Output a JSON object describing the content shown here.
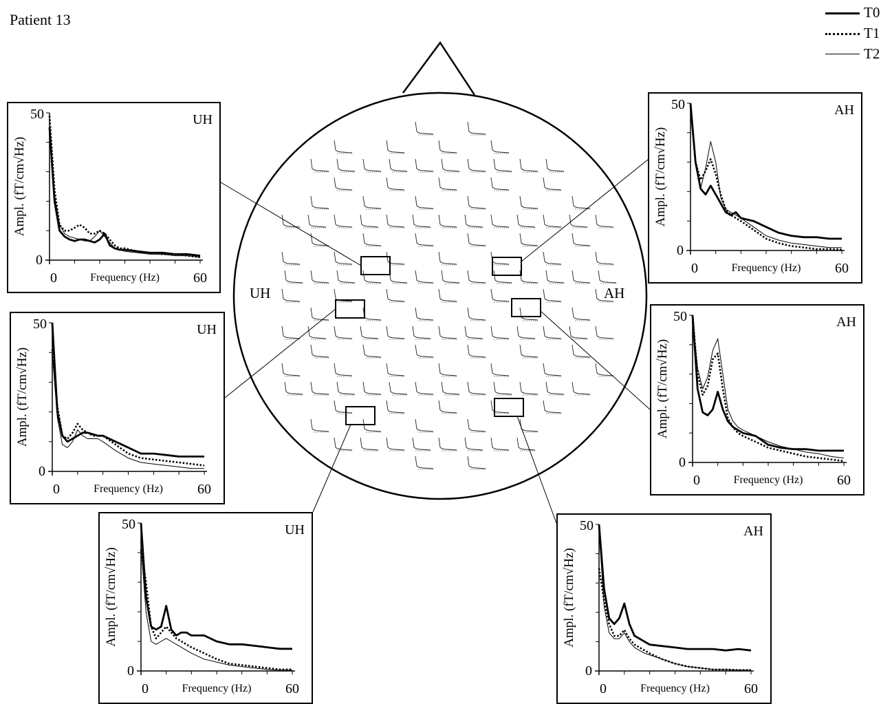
{
  "figure": {
    "title": "Patient 13",
    "hemisphere_labels": {
      "left": "UH",
      "right": "AH"
    }
  },
  "legend": [
    {
      "name": "T0",
      "style": "thick-solid"
    },
    {
      "name": "T1",
      "style": "dotted"
    },
    {
      "name": "T2",
      "style": "thin-solid"
    }
  ],
  "chart_data": [
    {
      "type": "line",
      "panel": "upper-left",
      "label": "UH",
      "xlabel": "Frequency (Hz)",
      "ylabel": "Ampl. (fT/cm√Hz)",
      "xlim": [
        0,
        60
      ],
      "ylim": [
        0,
        50
      ],
      "xticks": [
        "0",
        "60"
      ],
      "yticks": [
        "0",
        "50"
      ],
      "x": [
        0,
        2,
        4,
        6,
        8,
        10,
        12,
        14,
        16,
        18,
        20,
        22,
        24,
        26,
        28,
        30,
        35,
        40,
        45,
        50,
        55,
        60
      ],
      "series": [
        {
          "name": "T0",
          "values": [
            45,
            20,
            10,
            8,
            7,
            6.5,
            7,
            7,
            6.5,
            6,
            7,
            9,
            5,
            4,
            3.5,
            3.5,
            3,
            2.5,
            2.5,
            2,
            2,
            1.5
          ]
        },
        {
          "name": "T1",
          "values": [
            49,
            24,
            12,
            10,
            10,
            11,
            12,
            11,
            9,
            9,
            10,
            9,
            7,
            5,
            4,
            4,
            3,
            2.5,
            2,
            2,
            1.5,
            1
          ]
        },
        {
          "name": "T2",
          "values": [
            44,
            22,
            12,
            9,
            8,
            7.5,
            7,
            6.5,
            6.5,
            8,
            10,
            8,
            6,
            4,
            3.5,
            3,
            2.5,
            2,
            2,
            1.5,
            1.5,
            1
          ]
        }
      ]
    },
    {
      "type": "line",
      "panel": "middle-left",
      "label": "UH",
      "xlabel": "Frequency (Hz)",
      "ylabel": "Ampl. (fT/cm√Hz)",
      "xlim": [
        0,
        60
      ],
      "ylim": [
        0,
        50
      ],
      "xticks": [
        "0",
        "60"
      ],
      "yticks": [
        "0",
        "50"
      ],
      "x": [
        0,
        2,
        4,
        6,
        8,
        10,
        12,
        14,
        16,
        18,
        20,
        25,
        30,
        35,
        40,
        45,
        50,
        55,
        60
      ],
      "series": [
        {
          "name": "T0",
          "values": [
            50,
            20,
            12,
            10,
            11,
            12,
            13,
            13,
            12.5,
            12,
            12,
            10,
            8,
            6,
            6,
            5.5,
            5,
            5,
            5
          ]
        },
        {
          "name": "T1",
          "values": [
            41,
            22,
            12,
            11,
            13,
            16,
            14,
            13,
            12,
            12,
            12,
            9,
            6,
            4.5,
            4,
            3.5,
            3,
            2.5,
            2
          ]
        },
        {
          "name": "T2",
          "values": [
            40,
            18,
            9,
            8,
            10,
            14,
            12,
            11,
            11,
            11,
            10,
            7,
            4.5,
            3,
            2.5,
            2,
            1.5,
            1,
            1
          ]
        }
      ]
    },
    {
      "type": "line",
      "panel": "bottom-left",
      "label": "UH",
      "xlabel": "Frequency (Hz)",
      "ylabel": "Ampl. (fT/cm√Hz)",
      "xlim": [
        0,
        60
      ],
      "ylim": [
        0,
        50
      ],
      "xticks": [
        "0",
        "60"
      ],
      "yticks": [
        "0",
        "50"
      ],
      "x": [
        0,
        2,
        4,
        6,
        8,
        10,
        12,
        14,
        16,
        18,
        20,
        25,
        30,
        35,
        40,
        45,
        50,
        55,
        60
      ],
      "series": [
        {
          "name": "T0",
          "values": [
            50,
            25,
            15,
            14,
            15,
            22,
            14,
            12,
            13,
            13,
            12,
            12,
            10,
            9,
            9,
            8.5,
            8,
            7.5,
            7.5
          ]
        },
        {
          "name": "T1",
          "values": [
            41,
            30,
            15,
            11,
            13,
            15,
            13,
            11,
            10,
            9,
            8,
            6,
            4,
            2.5,
            2,
            1.5,
            1,
            0.5,
            0.5
          ]
        },
        {
          "name": "T2",
          "values": [
            42,
            20,
            10,
            9,
            10,
            11,
            10,
            9,
            8,
            7,
            6,
            4,
            3,
            2,
            1.5,
            1,
            0.5,
            0.3,
            0.3
          ]
        }
      ]
    },
    {
      "type": "line",
      "panel": "upper-right",
      "label": "AH",
      "xlabel": "Frequency (Hz)",
      "ylabel": "Ampl. (fT/cm√Hz)",
      "xlim": [
        0,
        60
      ],
      "ylim": [
        0,
        50
      ],
      "xticks": [
        "0",
        "60"
      ],
      "yticks": [
        "0",
        "50"
      ],
      "x": [
        0,
        2,
        4,
        6,
        8,
        10,
        12,
        14,
        16,
        18,
        20,
        25,
        30,
        35,
        40,
        45,
        50,
        55,
        60
      ],
      "series": [
        {
          "name": "T0",
          "values": [
            50,
            30,
            21,
            19,
            22,
            19,
            16,
            13,
            12,
            13,
            11,
            10,
            8,
            6,
            5,
            4.5,
            4.5,
            4,
            4
          ]
        },
        {
          "name": "T1",
          "values": [
            49,
            30,
            24,
            27,
            31,
            26,
            19,
            14,
            12,
            11,
            10,
            7,
            4,
            2.5,
            1.5,
            1,
            0.5,
            0.5,
            0.3
          ]
        },
        {
          "name": "T2",
          "values": [
            48,
            30,
            21,
            28,
            37,
            30,
            18,
            14,
            13,
            12,
            11,
            8,
            5,
            3.5,
            2.5,
            2,
            1.5,
            1,
            1
          ]
        }
      ]
    },
    {
      "type": "line",
      "panel": "middle-right",
      "label": "AH",
      "xlabel": "Frequency (Hz)",
      "ylabel": "Ampl. (fT/cm√Hz)",
      "xlim": [
        0,
        60
      ],
      "ylim": [
        0,
        50
      ],
      "xticks": [
        "0",
        "60"
      ],
      "yticks": [
        "0",
        "50"
      ],
      "x": [
        0,
        2,
        4,
        6,
        8,
        10,
        12,
        14,
        16,
        18,
        20,
        25,
        30,
        35,
        40,
        45,
        50,
        55,
        60
      ],
      "series": [
        {
          "name": "T0",
          "values": [
            50,
            25,
            17,
            16,
            18,
            24,
            18,
            14,
            12,
            11,
            10,
            9,
            6,
            5,
            4.5,
            4.5,
            4,
            4,
            4
          ]
        },
        {
          "name": "T1",
          "values": [
            50,
            30,
            23,
            26,
            35,
            37,
            25,
            15,
            12,
            10,
            9,
            7,
            5,
            4,
            3,
            2,
            1.5,
            1,
            0.5
          ]
        },
        {
          "name": "T2",
          "values": [
            49,
            32,
            25,
            29,
            38,
            42,
            30,
            18,
            14,
            12,
            11,
            9,
            7,
            5.5,
            4.5,
            3.5,
            3,
            2,
            1.5
          ]
        }
      ]
    },
    {
      "type": "line",
      "panel": "bottom-right",
      "label": "AH",
      "xlabel": "Frequency (Hz)",
      "ylabel": "Ampl. (fT/cm√Hz)",
      "xlim": [
        0,
        60
      ],
      "ylim": [
        0,
        50
      ],
      "xticks": [
        "0",
        "60"
      ],
      "yticks": [
        "0",
        "50"
      ],
      "x": [
        0,
        2,
        4,
        6,
        8,
        10,
        12,
        14,
        16,
        18,
        20,
        25,
        30,
        35,
        40,
        45,
        50,
        55,
        60
      ],
      "series": [
        {
          "name": "T0",
          "values": [
            50,
            28,
            18,
            16,
            18,
            23,
            16,
            12,
            11,
            10,
            9,
            8.5,
            8,
            7.5,
            7.5,
            7.5,
            7,
            7.5,
            7
          ]
        },
        {
          "name": "T1",
          "values": [
            35,
            24,
            16,
            12,
            12,
            14,
            11,
            9,
            8,
            7,
            6,
            4,
            2.5,
            1.5,
            1,
            0.5,
            0.5,
            0.3,
            0.3
          ]
        },
        {
          "name": "T2",
          "values": [
            48,
            22,
            13,
            11,
            11,
            13,
            10,
            8,
            7,
            6,
            5.5,
            4,
            2.5,
            1.5,
            1,
            0.5,
            0.5,
            0.3,
            0.3
          ]
        }
      ]
    }
  ]
}
